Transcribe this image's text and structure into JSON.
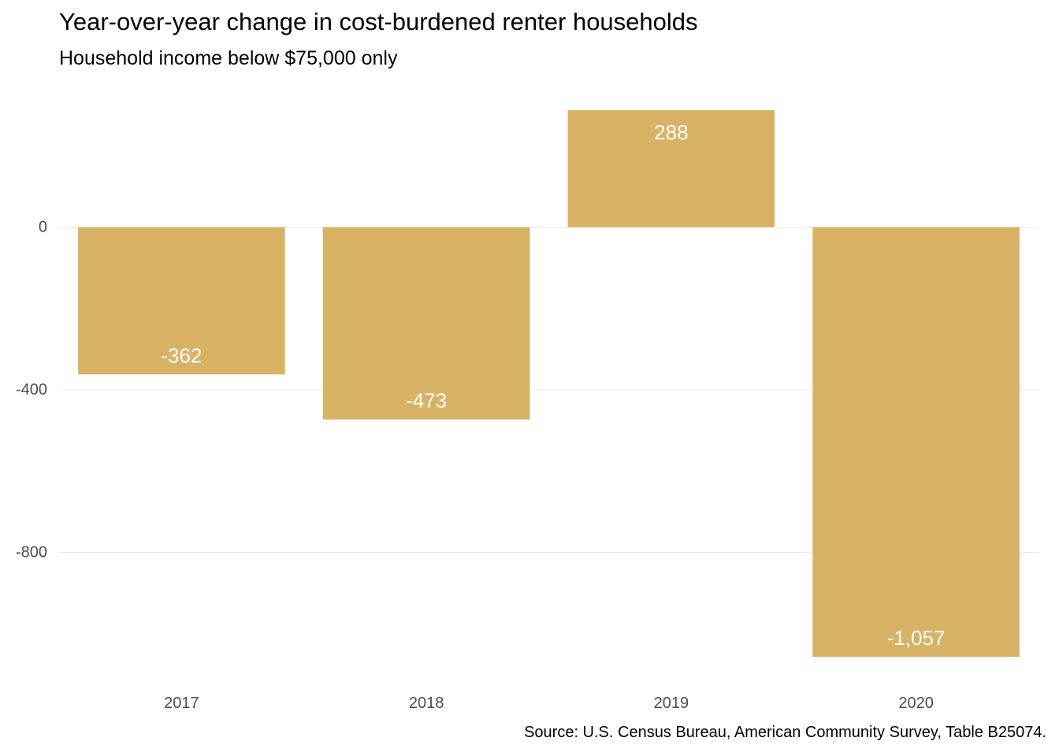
{
  "chart_data": {
    "type": "bar",
    "title": "Year-over-year change in cost-burdened renter households",
    "subtitle": "Household income below $75,000 only",
    "caption": "Source: U.S. Census Bureau, American Community Survey, Table B25074.",
    "categories": [
      "2017",
      "2018",
      "2019",
      "2020"
    ],
    "values": [
      -362,
      -473,
      288,
      -1057
    ],
    "data_labels": [
      "-362",
      "-473",
      "288",
      "-1,057"
    ],
    "y_ticks": [
      0,
      -400,
      -800
    ],
    "y_tick_labels": [
      "0",
      "-400",
      "-800"
    ],
    "ylim": [
      -1057,
      288
    ],
    "xlabel": "",
    "ylabel": "",
    "grid": true,
    "legend": "none",
    "bar_color": "#d8b365",
    "grid_color": "#ebebeb"
  }
}
